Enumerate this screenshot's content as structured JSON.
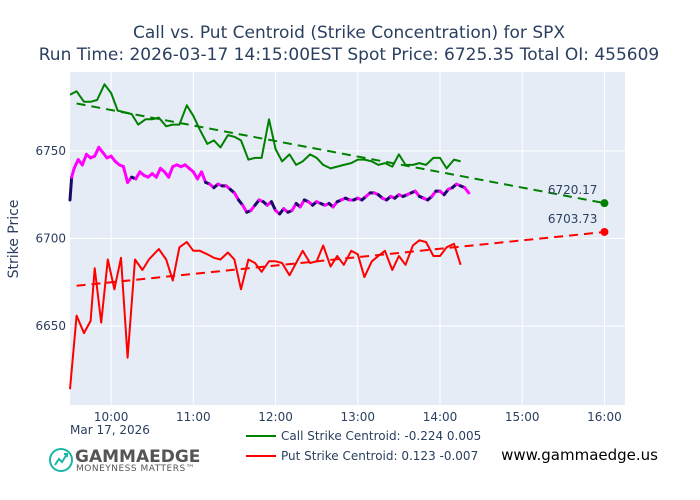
{
  "chart_data": {
    "type": "line",
    "title": "Call vs. Put Centroid (Strike Concentration) for SPX",
    "subtitle": "Run Time: 2026-03-17 14:15:00EST Spot Price: 6725.35 Total OI: 455609",
    "ylabel": "Strike Price",
    "xlabel": "",
    "date_label": "Mar 17, 2026",
    "x_range_hours": [
      9.5,
      16.25
    ],
    "ylim": [
      6605,
      6795
    ],
    "x_ticks": [
      {
        "value": 10,
        "label": "10:00"
      },
      {
        "value": 11,
        "label": "11:00"
      },
      {
        "value": 12,
        "label": "12:00"
      },
      {
        "value": 13,
        "label": "13:00"
      },
      {
        "value": 14,
        "label": "14:00"
      },
      {
        "value": 15,
        "label": "15:00"
      },
      {
        "value": 16,
        "label": "16:00"
      }
    ],
    "y_ticks": [
      6650,
      6700,
      6750
    ],
    "grid": true,
    "series": [
      {
        "name": "Call Strike Centroid: -0.224 0.005",
        "color": "#008000",
        "style": "solid",
        "points": [
          [
            9.5,
            6782
          ],
          [
            9.58,
            6784
          ],
          [
            9.67,
            6778
          ],
          [
            9.75,
            6778
          ],
          [
            9.83,
            6779
          ],
          [
            9.92,
            6788
          ],
          [
            10.0,
            6783
          ],
          [
            10.08,
            6773
          ],
          [
            10.17,
            6772
          ],
          [
            10.25,
            6771
          ],
          [
            10.33,
            6765
          ],
          [
            10.42,
            6768
          ],
          [
            10.5,
            6768
          ],
          [
            10.58,
            6769
          ],
          [
            10.67,
            6764
          ],
          [
            10.75,
            6765
          ],
          [
            10.83,
            6765
          ],
          [
            10.92,
            6776
          ],
          [
            11.0,
            6770
          ],
          [
            11.08,
            6762
          ],
          [
            11.17,
            6754
          ],
          [
            11.25,
            6756
          ],
          [
            11.33,
            6752
          ],
          [
            11.42,
            6759
          ],
          [
            11.5,
            6758
          ],
          [
            11.58,
            6756
          ],
          [
            11.67,
            6745
          ],
          [
            11.75,
            6746
          ],
          [
            11.83,
            6746
          ],
          [
            11.92,
            6768
          ],
          [
            12.0,
            6751
          ],
          [
            12.08,
            6744
          ],
          [
            12.17,
            6748
          ],
          [
            12.25,
            6742
          ],
          [
            12.33,
            6744
          ],
          [
            12.42,
            6748
          ],
          [
            12.5,
            6746
          ],
          [
            12.58,
            6742
          ],
          [
            12.67,
            6740
          ],
          [
            12.75,
            6741
          ],
          [
            12.83,
            6742
          ],
          [
            12.92,
            6743
          ],
          [
            13.0,
            6745
          ],
          [
            13.08,
            6745
          ],
          [
            13.17,
            6744
          ],
          [
            13.25,
            6742
          ],
          [
            13.33,
            6743
          ],
          [
            13.42,
            6741
          ],
          [
            13.5,
            6748
          ],
          [
            13.58,
            6742
          ],
          [
            13.67,
            6742
          ],
          [
            13.75,
            6743
          ],
          [
            13.83,
            6742
          ],
          [
            13.92,
            6746
          ],
          [
            14.0,
            6746
          ],
          [
            14.08,
            6740
          ],
          [
            14.17,
            6745
          ],
          [
            14.25,
            6744
          ]
        ]
      },
      {
        "name": "Put Strike Centroid: 0.123 -0.007",
        "color": "#ff0000",
        "style": "solid",
        "points": [
          [
            9.5,
            6614
          ],
          [
            9.58,
            6656
          ],
          [
            9.67,
            6646
          ],
          [
            9.75,
            6653
          ],
          [
            9.8,
            6683
          ],
          [
            9.88,
            6652
          ],
          [
            9.96,
            6688
          ],
          [
            10.04,
            6671
          ],
          [
            10.12,
            6689
          ],
          [
            10.2,
            6632
          ],
          [
            10.29,
            6688
          ],
          [
            10.38,
            6682
          ],
          [
            10.46,
            6688
          ],
          [
            10.58,
            6694
          ],
          [
            10.67,
            6688
          ],
          [
            10.75,
            6676
          ],
          [
            10.83,
            6695
          ],
          [
            10.92,
            6698
          ],
          [
            11.0,
            6693
          ],
          [
            11.08,
            6693
          ],
          [
            11.17,
            6691
          ],
          [
            11.25,
            6689
          ],
          [
            11.33,
            6688
          ],
          [
            11.42,
            6692
          ],
          [
            11.5,
            6688
          ],
          [
            11.58,
            6671
          ],
          [
            11.67,
            6688
          ],
          [
            11.75,
            6686
          ],
          [
            11.83,
            6681
          ],
          [
            11.92,
            6687
          ],
          [
            12.0,
            6687
          ],
          [
            12.08,
            6686
          ],
          [
            12.17,
            6679
          ],
          [
            12.25,
            6686
          ],
          [
            12.33,
            6693
          ],
          [
            12.42,
            6686
          ],
          [
            12.5,
            6687
          ],
          [
            12.58,
            6696
          ],
          [
            12.67,
            6684
          ],
          [
            12.75,
            6690
          ],
          [
            12.83,
            6685
          ],
          [
            12.92,
            6693
          ],
          [
            13.0,
            6691
          ],
          [
            13.08,
            6678
          ],
          [
            13.17,
            6687
          ],
          [
            13.25,
            6690
          ],
          [
            13.33,
            6693
          ],
          [
            13.42,
            6682
          ],
          [
            13.5,
            6690
          ],
          [
            13.58,
            6685
          ],
          [
            13.67,
            6696
          ],
          [
            13.75,
            6699
          ],
          [
            13.83,
            6698
          ],
          [
            13.92,
            6690
          ],
          [
            14.0,
            6690
          ],
          [
            14.08,
            6695
          ],
          [
            14.17,
            6697
          ],
          [
            14.25,
            6685
          ]
        ]
      },
      {
        "name": "Call trend",
        "color": "#008000",
        "style": "dashed",
        "points": [
          [
            9.58,
            6777
          ],
          [
            16.0,
            6720.17
          ]
        ]
      },
      {
        "name": "Put trend",
        "color": "#ff0000",
        "style": "dashed",
        "points": [
          [
            9.58,
            6673
          ],
          [
            16.0,
            6703.73
          ]
        ]
      },
      {
        "name": "Spot price",
        "color": "#ff00ff",
        "style": "multicolor",
        "points": [
          [
            9.5,
            6722
          ],
          [
            9.52,
            6735
          ],
          [
            9.55,
            6740
          ],
          [
            9.6,
            6745
          ],
          [
            9.65,
            6742
          ],
          [
            9.7,
            6748
          ],
          [
            9.75,
            6746
          ],
          [
            9.8,
            6747
          ],
          [
            9.85,
            6752
          ],
          [
            9.9,
            6749
          ],
          [
            9.95,
            6746
          ],
          [
            10.0,
            6747
          ],
          [
            10.05,
            6744
          ],
          [
            10.1,
            6742
          ],
          [
            10.15,
            6741
          ],
          [
            10.2,
            6732
          ],
          [
            10.25,
            6735
          ],
          [
            10.3,
            6734
          ],
          [
            10.35,
            6738
          ],
          [
            10.4,
            6736
          ],
          [
            10.45,
            6735
          ],
          [
            10.5,
            6737
          ],
          [
            10.55,
            6735
          ],
          [
            10.6,
            6740
          ],
          [
            10.65,
            6738
          ],
          [
            10.7,
            6735
          ],
          [
            10.75,
            6741
          ],
          [
            10.8,
            6742
          ],
          [
            10.85,
            6741
          ],
          [
            10.9,
            6742
          ],
          [
            10.95,
            6740
          ],
          [
            11.0,
            6738
          ],
          [
            11.05,
            6734
          ],
          [
            11.1,
            6738
          ],
          [
            11.15,
            6732
          ],
          [
            11.2,
            6731
          ],
          [
            11.25,
            6729
          ],
          [
            11.3,
            6731
          ],
          [
            11.35,
            6730
          ],
          [
            11.4,
            6730
          ],
          [
            11.45,
            6728
          ],
          [
            11.5,
            6726
          ],
          [
            11.55,
            6722
          ],
          [
            11.6,
            6719
          ],
          [
            11.65,
            6715
          ],
          [
            11.7,
            6716
          ],
          [
            11.75,
            6719
          ],
          [
            11.8,
            6722
          ],
          [
            11.85,
            6721
          ],
          [
            11.9,
            6719
          ],
          [
            11.95,
            6721
          ],
          [
            12.0,
            6716
          ],
          [
            12.05,
            6714
          ],
          [
            12.1,
            6717
          ],
          [
            12.15,
            6715
          ],
          [
            12.2,
            6716
          ],
          [
            12.25,
            6720
          ],
          [
            12.3,
            6718
          ],
          [
            12.35,
            6722
          ],
          [
            12.4,
            6721
          ],
          [
            12.45,
            6719
          ],
          [
            12.5,
            6721
          ],
          [
            12.55,
            6720
          ],
          [
            12.6,
            6719
          ],
          [
            12.65,
            6720
          ],
          [
            12.7,
            6718
          ],
          [
            12.75,
            6721
          ],
          [
            12.8,
            6722
          ],
          [
            12.85,
            6723
          ],
          [
            12.9,
            6722
          ],
          [
            12.95,
            6722
          ],
          [
            13.0,
            6723
          ],
          [
            13.05,
            6722
          ],
          [
            13.1,
            6724
          ],
          [
            13.15,
            6726
          ],
          [
            13.2,
            6726
          ],
          [
            13.25,
            6725
          ],
          [
            13.3,
            6723
          ],
          [
            13.35,
            6722
          ],
          [
            13.4,
            6724
          ],
          [
            13.45,
            6723
          ],
          [
            13.5,
            6725
          ],
          [
            13.55,
            6724
          ],
          [
            13.6,
            6725
          ],
          [
            13.65,
            6726
          ],
          [
            13.7,
            6727
          ],
          [
            13.75,
            6724
          ],
          [
            13.8,
            6723
          ],
          [
            13.85,
            6722
          ],
          [
            13.9,
            6724
          ],
          [
            13.95,
            6727
          ],
          [
            14.0,
            6727
          ],
          [
            14.05,
            6725
          ],
          [
            14.1,
            6728
          ],
          [
            14.15,
            6729
          ],
          [
            14.2,
            6731
          ],
          [
            14.25,
            6730
          ],
          [
            14.3,
            6729
          ],
          [
            14.35,
            6726
          ]
        ]
      }
    ],
    "endpoints": [
      {
        "series": "Call trend",
        "x": 16.0,
        "y": 6720.17,
        "label": "6720.17",
        "color": "#008000"
      },
      {
        "series": "Put trend",
        "x": 16.0,
        "y": 6703.73,
        "label": "6703.73",
        "color": "#ff0000"
      }
    ],
    "legend": {
      "placement": "bottom-center",
      "items": [
        {
          "label": "Call Strike Centroid: -0.224 0.005",
          "color": "#008000"
        },
        {
          "label": "Put Strike Centroid: 0.123 -0.007",
          "color": "#ff0000"
        }
      ]
    }
  },
  "branding": {
    "logo_text": "GAMMAEDGE",
    "tagline": "MONEYNESS MATTERS™",
    "website": "www.gammaedge.us"
  },
  "colors": {
    "plot_bg": "#e5ecf6",
    "grid": "#ffffff",
    "call": "#008000",
    "put": "#ff0000",
    "spot_high": "#ff00ff",
    "spot_low": "#1a0a66"
  }
}
